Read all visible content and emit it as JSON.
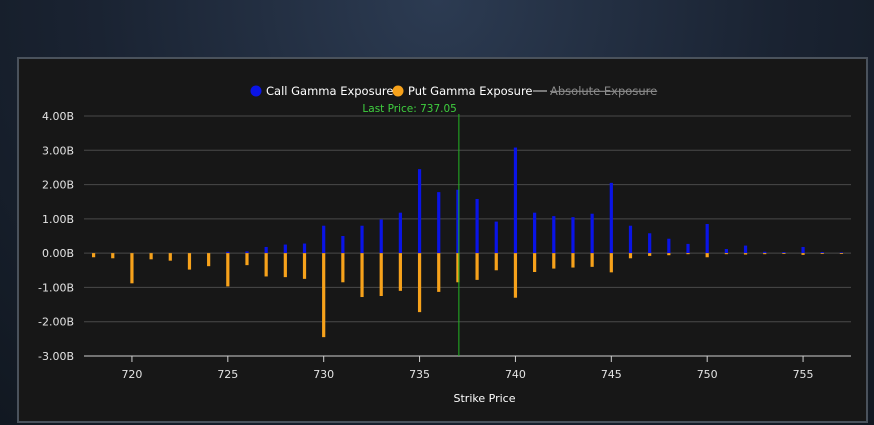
{
  "chart_data": {
    "type": "bar",
    "xlabel": "Strike Price",
    "ylabel": "",
    "ylim": [
      -3.0,
      4.0
    ],
    "xlim": [
      717.5,
      757.5
    ],
    "y_ticks": [
      4,
      3,
      2,
      1,
      0,
      -1,
      -2,
      -3
    ],
    "y_tick_labels": [
      "4.00B",
      "3.00B",
      "2.00B",
      "1.00B",
      "0.00B",
      "-1.00B",
      "-2.00B",
      "-3.00B"
    ],
    "x_ticks": [
      720,
      725,
      730,
      735,
      740,
      745,
      750,
      755
    ],
    "x_tick_labels": [
      "720",
      "725",
      "730",
      "735",
      "740",
      "745",
      "750",
      "755"
    ],
    "grid": "horizontal",
    "legend_position": "top-center",
    "strikes": [
      718,
      719,
      720,
      721,
      722,
      723,
      724,
      725,
      726,
      727,
      728,
      729,
      730,
      731,
      732,
      733,
      734,
      735,
      736,
      737,
      738,
      739,
      740,
      741,
      742,
      743,
      744,
      745,
      746,
      747,
      748,
      749,
      750,
      751,
      752,
      753,
      754,
      755,
      756,
      757
    ],
    "series": [
      {
        "name": "Call Gamma Exposure",
        "color": "#0a14e6",
        "values": [
          0,
          0,
          0,
          0,
          0,
          0,
          0,
          0.04,
          0.05,
          0.18,
          0.25,
          0.28,
          0.8,
          0.5,
          0.8,
          0.98,
          1.18,
          2.45,
          1.78,
          1.85,
          1.58,
          0.92,
          3.08,
          1.18,
          1.08,
          1.05,
          1.15,
          2.05,
          0.8,
          0.58,
          0.42,
          0.27,
          0.85,
          0.12,
          0.22,
          0.04,
          0.03,
          0.18,
          0.03,
          0.02
        ]
      },
      {
        "name": "Put Gamma Exposure",
        "color": "#f7a21b",
        "values": [
          -0.12,
          -0.15,
          -0.88,
          -0.18,
          -0.22,
          -0.48,
          -0.38,
          -0.97,
          -0.35,
          -0.68,
          -0.7,
          -0.75,
          -2.45,
          -0.85,
          -1.28,
          -1.25,
          -1.1,
          -1.72,
          -1.13,
          -0.85,
          -0.78,
          -0.5,
          -1.3,
          -0.55,
          -0.45,
          -0.42,
          -0.4,
          -0.56,
          -0.15,
          -0.08,
          -0.06,
          -0.03,
          -0.12,
          -0.03,
          -0.04,
          -0.03,
          -0.02,
          -0.05,
          -0.02,
          -0.02
        ]
      },
      {
        "name": "Absolute Exposure",
        "color": "#9a9a9a",
        "visible": false
      }
    ],
    "annotations": [
      {
        "text": "Last Price: 737.05",
        "x": 737.05,
        "color": "#22b422"
      }
    ]
  }
}
